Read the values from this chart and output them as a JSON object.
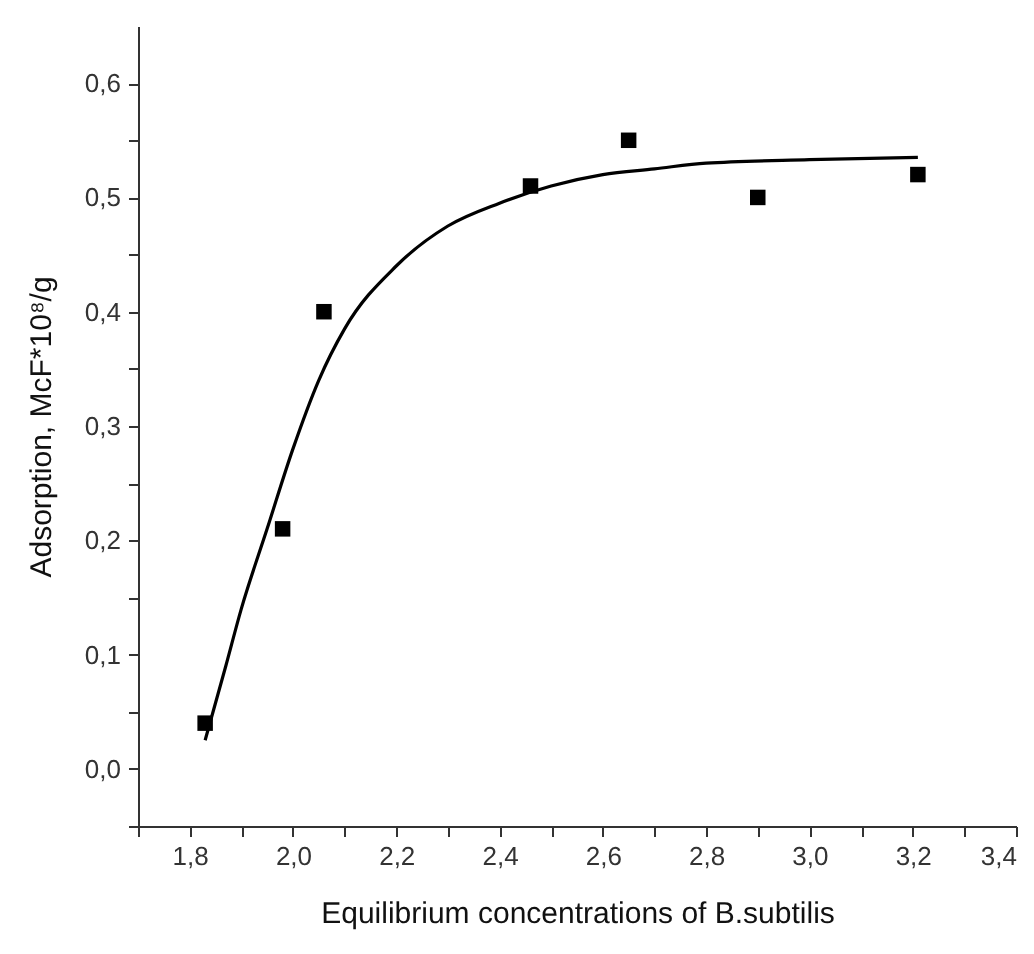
{
  "chart_data": {
    "type": "scatter",
    "xlabel": "Equilibrium concentrations of B.subtilis",
    "ylabel": "Adsorption, McF*10⁸/g",
    "xlim": [
      1.7,
      3.4
    ],
    "ylim": [
      -0.05,
      0.65
    ],
    "xticks": [
      {
        "value": 1.7,
        "label": null
      },
      {
        "value": 1.8,
        "label": "1,8"
      },
      {
        "value": 1.9,
        "label": null
      },
      {
        "value": 2.0,
        "label": "2,0"
      },
      {
        "value": 2.1,
        "label": null
      },
      {
        "value": 2.2,
        "label": "2,2"
      },
      {
        "value": 2.3,
        "label": null
      },
      {
        "value": 2.4,
        "label": "2,4"
      },
      {
        "value": 2.5,
        "label": null
      },
      {
        "value": 2.6,
        "label": "2,6"
      },
      {
        "value": 2.7,
        "label": null
      },
      {
        "value": 2.8,
        "label": "2,8"
      },
      {
        "value": 2.9,
        "label": null
      },
      {
        "value": 3.0,
        "label": "3,0"
      },
      {
        "value": 3.1,
        "label": null
      },
      {
        "value": 3.2,
        "label": "3,2"
      },
      {
        "value": 3.3,
        "label": null
      },
      {
        "value": 3.4,
        "label": "3,4"
      }
    ],
    "yticks": [
      {
        "value": -0.05,
        "label": null
      },
      {
        "value": 0,
        "label": "0,0"
      },
      {
        "value": 0.05,
        "label": null
      },
      {
        "value": 0.1,
        "label": "0,1"
      },
      {
        "value": 0.15,
        "label": null
      },
      {
        "value": 0.2,
        "label": "0,2"
      },
      {
        "value": 0.25,
        "label": null
      },
      {
        "value": 0.3,
        "label": "0,3"
      },
      {
        "value": 0.35,
        "label": null
      },
      {
        "value": 0.4,
        "label": "0,4"
      },
      {
        "value": 0.45,
        "label": null
      },
      {
        "value": 0.5,
        "label": "0,5"
      },
      {
        "value": 0.55,
        "label": null
      },
      {
        "value": 0.6,
        "label": "0,6"
      }
    ],
    "grid": false,
    "series": [
      {
        "marker": "square",
        "color": "#000000",
        "x": [
          1.83,
          1.98,
          2.06,
          2.46,
          2.65,
          2.9,
          3.21
        ],
        "values": [
          0.04,
          0.21,
          0.4,
          0.51,
          0.55,
          0.5,
          0.52
        ]
      },
      {
        "type": "line",
        "marker": "none",
        "color": "#000000",
        "x": [
          1.83,
          1.87,
          1.9,
          1.95,
          2.0,
          2.05,
          2.1,
          2.2,
          2.3,
          2.4,
          2.5,
          2.6,
          2.7,
          2.8,
          3.0,
          3.21
        ],
        "values": [
          0.025,
          0.09,
          0.14,
          0.21,
          0.28,
          0.34,
          0.385,
          0.44,
          0.475,
          0.495,
          0.51,
          0.52,
          0.525,
          0.53,
          0.533,
          0.535
        ]
      }
    ]
  }
}
